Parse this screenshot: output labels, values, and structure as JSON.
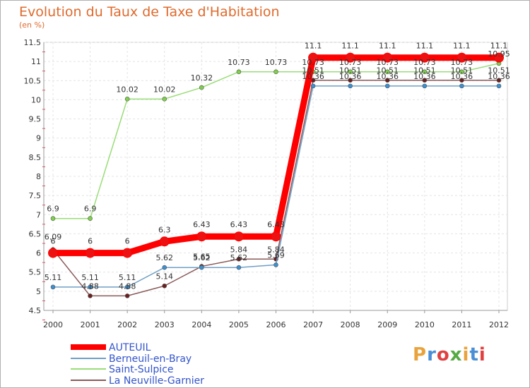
{
  "chart_data": {
    "type": "line",
    "title": "Evolution du Taux de Taxe d'Habitation",
    "ylabel": "(en %)",
    "xlabel": "",
    "x": [
      "2000",
      "2001",
      "2002",
      "2003",
      "2004",
      "2005",
      "2006",
      "2007",
      "2008",
      "2009",
      "2010",
      "2011",
      "2012"
    ],
    "ylim": [
      4.5,
      11.5
    ],
    "yticks": [
      "4.5",
      "5",
      "5.5",
      "6",
      "6.5",
      "7",
      "7.5",
      "8",
      "8.5",
      "9",
      "9.5",
      "10",
      "10.5",
      "11",
      "11.5"
    ],
    "grid": true,
    "series": [
      {
        "name": "AUTEUIL",
        "color": "#ff0000",
        "values": [
          6,
          6,
          6,
          6.3,
          6.43,
          6.43,
          6.43,
          11.1,
          11.1,
          11.1,
          11.1,
          11.1,
          11.1
        ],
        "labels": [
          "6",
          "6",
          "6",
          "6.3",
          "6.43",
          "6.43",
          "6.43",
          "11.1",
          "11.1",
          "11.1",
          "11.1",
          "11.1",
          "11.1"
        ]
      },
      {
        "name": "Berneuil-en-Bray",
        "color": "#6f9fc5",
        "values": [
          5.11,
          5.11,
          5.11,
          5.62,
          5.62,
          5.62,
          5.69,
          10.36,
          10.36,
          10.36,
          10.36,
          10.36,
          10.36
        ],
        "labels": [
          "5.11",
          "5.11",
          "5.11",
          "5.62",
          "5.62",
          "5.62",
          "5.69",
          "10.36",
          "10.36",
          "10.36",
          "10.36",
          "10.36",
          "10.36"
        ]
      },
      {
        "name": "Saint-Sulpice",
        "color": "#99dd77",
        "values": [
          6.9,
          6.9,
          10.02,
          10.02,
          10.32,
          10.73,
          10.73,
          10.73,
          10.73,
          10.73,
          10.73,
          10.73,
          10.95
        ],
        "labels": [
          "6.9",
          "6.9",
          "10.02",
          "10.02",
          "10.32",
          "10.73",
          "10.73",
          "10.73",
          "10.73",
          "10.73",
          "10.73",
          "10.73",
          "10.95"
        ]
      },
      {
        "name": "La Neuville-Garnier",
        "color": "#8b5a5a",
        "values": [
          6.09,
          4.88,
          4.88,
          5.14,
          5.65,
          5.84,
          5.84,
          10.51,
          10.51,
          10.51,
          10.51,
          10.51,
          10.51
        ],
        "labels": [
          "6.09",
          "4.88",
          "4.88",
          "5.14",
          "5.65",
          "5.84",
          "5.84",
          "10.51",
          "10.51",
          "10.51",
          "10.51",
          "10.51",
          "10.51"
        ]
      }
    ],
    "legend_position": "bottom-left"
  },
  "branding": {
    "logo_text": "Proxiti",
    "colors": [
      "#e8a33c",
      "#4a8fd6",
      "#e04040",
      "#55aa44",
      "#e8a33c",
      "#4a8fd6",
      "#e04040"
    ]
  }
}
